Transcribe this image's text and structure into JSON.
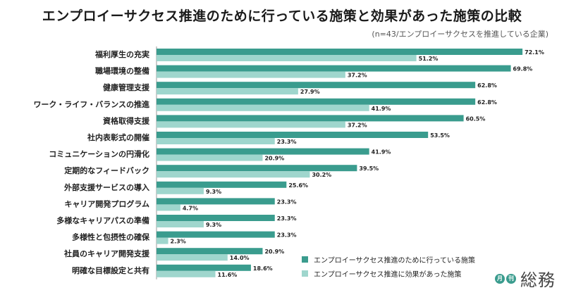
{
  "header": {
    "title": "エンプロイーサクセス推進のために行っている施策と効果があった施策の比較",
    "subtitle": "(n=43/エンプロイーサクセスを推進している企業)"
  },
  "legend": {
    "items": [
      {
        "label": "エンプロイーサクセス推進のために行っている施策",
        "color": "#3a9c8e"
      },
      {
        "label": "エンプロイーサクセス推進に効果があった施策",
        "color": "#9fd6cd"
      }
    ]
  },
  "logo": {
    "badge1": "月",
    "badge2": "刊",
    "text": "総務"
  },
  "chart_data": {
    "type": "bar",
    "orientation": "horizontal",
    "categories": [
      "福利厚生の充実",
      "職場環境の整備",
      "健康管理支援",
      "ワーク・ライフ・バランスの推進",
      "資格取得支援",
      "社内表彰式の開催",
      "コミュニケーションの円滑化",
      "定期的なフィードバック",
      "外部支援サービスの導入",
      "キャリア開発プログラム",
      "多様なキャリアパスの準備",
      "多様性と包摂性の確保",
      "社員のキャリア開発支援",
      "明確な目標設定と共有"
    ],
    "series": [
      {
        "name": "エンプロイーサクセス推進のために行っている施策",
        "color": "#3a9c8e",
        "values": [
          72.1,
          69.8,
          62.8,
          62.8,
          60.5,
          53.5,
          41.9,
          39.5,
          25.6,
          23.3,
          23.3,
          23.3,
          20.9,
          18.6
        ],
        "labels": [
          "72.1%",
          "69.8%",
          "62.8%",
          "62.8%",
          "60.5%",
          "53.5%",
          "41.9%",
          "39.5%",
          "25.6%",
          "23.3%",
          "23.3%",
          "23.3%",
          "20.9%",
          "18.6%"
        ]
      },
      {
        "name": "エンプロイーサクセス推進に効果があった施策",
        "color": "#9fd6cd",
        "values": [
          51.2,
          37.2,
          27.9,
          41.9,
          37.2,
          23.3,
          20.9,
          30.2,
          9.3,
          4.7,
          9.3,
          2.3,
          14.0,
          11.6
        ],
        "labels": [
          "51.2%",
          "37.2%",
          "27.9%",
          "41.9%",
          "37.2%",
          "23.3%",
          "20.9%",
          "30.2%",
          "9.3%",
          "4.7%",
          "9.3%",
          "2.3%",
          "14.0%",
          "11.6%"
        ]
      }
    ],
    "xlim": [
      0,
      100
    ]
  }
}
